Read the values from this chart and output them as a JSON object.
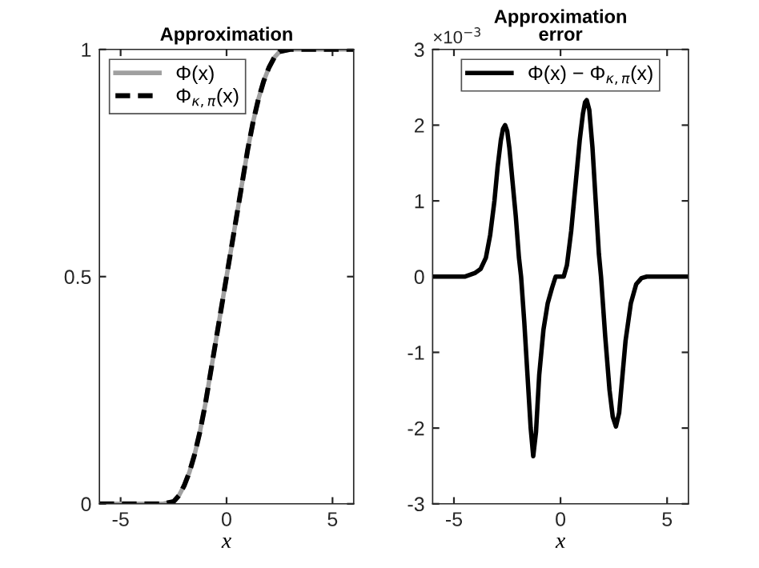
{
  "chart_data": [
    {
      "type": "line",
      "title": "Approximation",
      "xlabel": "x",
      "legend": "top left",
      "grid": false,
      "x": [
        -6,
        -3,
        -2.5,
        -2.25,
        -2,
        -1.75,
        -1.5,
        -1.25,
        -1,
        -0.5,
        0,
        0.5,
        1,
        1.25,
        1.5,
        1.75,
        2,
        2.25,
        2.5,
        3,
        6
      ],
      "series": [
        {
          "name": "Φ(x)",
          "color": "#a0a0a0",
          "line_style": "solid",
          "values": [
            0,
            0,
            0.005,
            0.018,
            0.04,
            0.07,
            0.11,
            0.16,
            0.22,
            0.36,
            0.5,
            0.64,
            0.78,
            0.84,
            0.89,
            0.93,
            0.96,
            0.982,
            0.995,
            1,
            1
          ]
        },
        {
          "name": "Φ$_{κ,π}$(x)",
          "color": "#000000",
          "line_style": "dashed",
          "values": [
            0,
            0,
            0.005,
            0.018,
            0.04,
            0.07,
            0.11,
            0.16,
            0.22,
            0.36,
            0.5,
            0.64,
            0.78,
            0.84,
            0.89,
            0.93,
            0.96,
            0.982,
            0.995,
            1,
            1
          ]
        }
      ],
      "xlim": [
        -6,
        6
      ],
      "xticks": [
        -5,
        0,
        5
      ],
      "ylim": [
        0,
        1
      ],
      "yticks": [
        0,
        0.5,
        1
      ]
    },
    {
      "type": "line",
      "title": "Approximation error",
      "xlabel": "x",
      "legend": "top",
      "grid": false,
      "annotations": [
        "×10$^{−3}$"
      ],
      "x": [
        -6,
        -4.5,
        -4,
        -3.75,
        -3.5,
        -3.3,
        -3.1,
        -2.95,
        -2.8,
        -2.7,
        -2.6,
        -2.5,
        -2.4,
        -2.25,
        -2.1,
        -1.95,
        -1.85,
        -1.7,
        -1.55,
        -1.4,
        -1.28,
        -1.15,
        -1.0,
        -0.8,
        -0.6,
        -0.4,
        -0.23,
        0.15,
        0.3,
        0.5,
        0.7,
        0.9,
        1.05,
        1.15,
        1.23,
        1.35,
        1.5,
        1.65,
        1.8,
        1.9,
        2.1,
        2.3,
        2.45,
        2.6,
        2.75,
        3.05,
        3.3,
        3.55,
        3.8,
        4.05,
        6
      ],
      "series": [
        {
          "name": "Φ(x) − Φ$_{κ,π}$(x)",
          "color": "#000000",
          "line_style": "solid",
          "values": [
            0,
            0,
            0.05,
            0.1,
            0.25,
            0.55,
            1.0,
            1.45,
            1.8,
            1.95,
            2.0,
            1.92,
            1.7,
            1.25,
            0.8,
            0.25,
            0,
            -0.6,
            -1.3,
            -2.0,
            -2.37,
            -2.05,
            -1.3,
            -0.7,
            -0.35,
            -0.15,
            0,
            0,
            0.15,
            0.6,
            1.2,
            1.8,
            2.15,
            2.3,
            2.33,
            2.2,
            1.7,
            1.0,
            0.3,
            0,
            -0.8,
            -1.5,
            -1.85,
            -1.98,
            -1.8,
            -0.85,
            -0.35,
            -0.1,
            -0.02,
            0,
            0
          ]
        }
      ],
      "xlim": [
        -6,
        6
      ],
      "xticks": [
        -5,
        0,
        5
      ],
      "ylim": [
        -3,
        3
      ],
      "yticks": [
        -3,
        -2,
        -1,
        0,
        1,
        2,
        3
      ]
    }
  ]
}
